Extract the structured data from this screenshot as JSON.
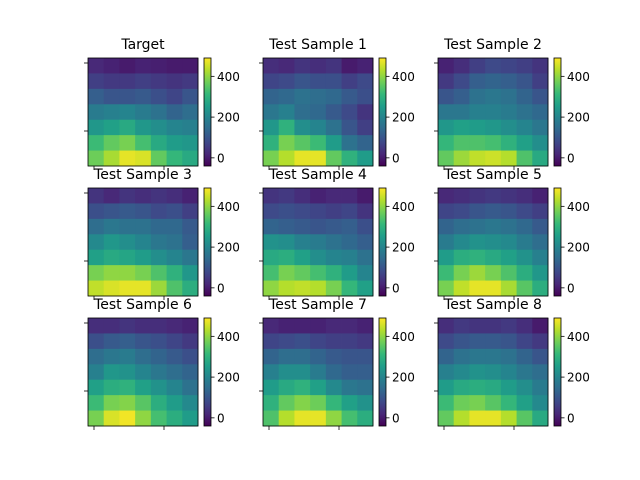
{
  "chart_data": {
    "type": "heatmap",
    "colormap": "viridis",
    "vmin": -40,
    "vmax": 490,
    "colorbar_ticks": [
      0,
      200,
      400
    ],
    "panels": [
      {
        "title": "Target",
        "values": [
          [
            20,
            10,
            0,
            10,
            5,
            0,
            0
          ],
          [
            60,
            50,
            50,
            60,
            50,
            40,
            50
          ],
          [
            120,
            100,
            100,
            110,
            90,
            70,
            100
          ],
          [
            180,
            190,
            200,
            180,
            160,
            130,
            150
          ],
          [
            240,
            260,
            280,
            240,
            220,
            200,
            190
          ],
          [
            320,
            360,
            380,
            330,
            280,
            250,
            240
          ],
          [
            370,
            420,
            470,
            460,
            360,
            310,
            280
          ]
        ]
      },
      {
        "title": "Test Sample 1",
        "values": [
          [
            30,
            20,
            40,
            30,
            40,
            0,
            10
          ],
          [
            70,
            80,
            100,
            90,
            90,
            60,
            80
          ],
          [
            130,
            140,
            160,
            150,
            140,
            110,
            90
          ],
          [
            170,
            190,
            150,
            140,
            110,
            80,
            40
          ],
          [
            240,
            300,
            220,
            200,
            160,
            100,
            60
          ],
          [
            300,
            380,
            350,
            320,
            250,
            160,
            130
          ],
          [
            380,
            430,
            470,
            470,
            360,
            300,
            250
          ]
        ]
      },
      {
        "title": "Test Sample 2",
        "values": [
          [
            10,
            30,
            60,
            80,
            70,
            60,
            40
          ],
          [
            50,
            80,
            120,
            130,
            120,
            100,
            60
          ],
          [
            100,
            120,
            160,
            170,
            160,
            130,
            100
          ],
          [
            170,
            170,
            190,
            190,
            180,
            160,
            140
          ],
          [
            240,
            260,
            250,
            240,
            220,
            200,
            170
          ],
          [
            310,
            340,
            340,
            330,
            300,
            260,
            220
          ],
          [
            360,
            410,
            440,
            450,
            430,
            340,
            280
          ]
        ]
      },
      {
        "title": "Test Sample 3",
        "values": [
          [
            40,
            20,
            40,
            30,
            40,
            30,
            10
          ],
          [
            90,
            100,
            110,
            100,
            80,
            90,
            60
          ],
          [
            150,
            170,
            160,
            160,
            140,
            140,
            110
          ],
          [
            210,
            240,
            220,
            200,
            170,
            160,
            120
          ],
          [
            260,
            280,
            270,
            250,
            220,
            200,
            170
          ],
          [
            380,
            400,
            400,
            380,
            340,
            300,
            240
          ],
          [
            440,
            460,
            470,
            470,
            410,
            340,
            290
          ]
        ]
      },
      {
        "title": "Test Sample 4",
        "values": [
          [
            40,
            50,
            30,
            10,
            20,
            20,
            0
          ],
          [
            80,
            90,
            80,
            70,
            60,
            70,
            40
          ],
          [
            130,
            120,
            110,
            100,
            110,
            120,
            90
          ],
          [
            230,
            220,
            190,
            180,
            160,
            140,
            120
          ],
          [
            280,
            290,
            260,
            220,
            200,
            190,
            160
          ],
          [
            330,
            380,
            360,
            330,
            300,
            250,
            200
          ],
          [
            400,
            430,
            440,
            430,
            380,
            310,
            260
          ]
        ]
      },
      {
        "title": "Test Sample 5",
        "values": [
          [
            20,
            30,
            40,
            50,
            40,
            30,
            10
          ],
          [
            70,
            80,
            100,
            110,
            100,
            80,
            60
          ],
          [
            130,
            150,
            160,
            170,
            160,
            140,
            110
          ],
          [
            180,
            210,
            230,
            220,
            210,
            180,
            150
          ],
          [
            250,
            290,
            300,
            280,
            260,
            230,
            190
          ],
          [
            320,
            380,
            410,
            380,
            340,
            290,
            240
          ],
          [
            380,
            440,
            470,
            470,
            420,
            350,
            290
          ]
        ]
      },
      {
        "title": "Test Sample 6",
        "values": [
          [
            30,
            30,
            40,
            30,
            30,
            20,
            10
          ],
          [
            90,
            110,
            120,
            100,
            90,
            70,
            50
          ],
          [
            150,
            170,
            180,
            150,
            130,
            110,
            90
          ],
          [
            190,
            240,
            230,
            200,
            170,
            150,
            130
          ],
          [
            260,
            290,
            300,
            260,
            230,
            200,
            160
          ],
          [
            320,
            380,
            390,
            350,
            290,
            250,
            210
          ],
          [
            380,
            460,
            480,
            400,
            330,
            290,
            250
          ]
        ]
      },
      {
        "title": "Test Sample 7",
        "values": [
          [
            20,
            10,
            10,
            10,
            20,
            20,
            10
          ],
          [
            70,
            80,
            90,
            70,
            60,
            60,
            50
          ],
          [
            130,
            150,
            150,
            130,
            110,
            100,
            100
          ],
          [
            190,
            220,
            220,
            180,
            140,
            120,
            120
          ],
          [
            250,
            280,
            300,
            260,
            210,
            170,
            160
          ],
          [
            300,
            360,
            390,
            370,
            310,
            260,
            230
          ],
          [
            340,
            430,
            470,
            470,
            400,
            330,
            290
          ]
        ]
      },
      {
        "title": "Test Sample 8",
        "values": [
          [
            30,
            50,
            40,
            40,
            50,
            30,
            0
          ],
          [
            80,
            100,
            110,
            110,
            100,
            70,
            50
          ],
          [
            130,
            160,
            170,
            170,
            160,
            130,
            100
          ],
          [
            190,
            210,
            230,
            220,
            200,
            170,
            150
          ],
          [
            250,
            280,
            290,
            280,
            250,
            220,
            180
          ],
          [
            320,
            370,
            380,
            350,
            310,
            260,
            210
          ],
          [
            360,
            430,
            470,
            470,
            430,
            350,
            280
          ]
        ]
      }
    ]
  }
}
